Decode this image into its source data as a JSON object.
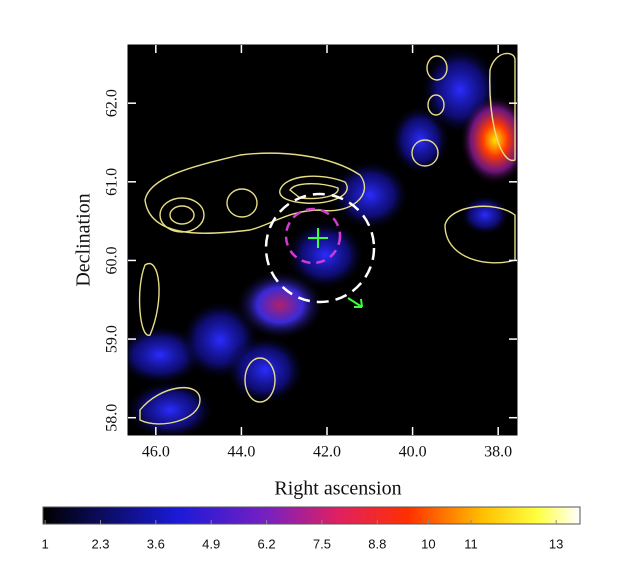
{
  "chart_data": {
    "type": "heatmap",
    "xlabel": "Right ascension",
    "ylabel": "Declination",
    "xlim": [
      46.65,
      37.56
    ],
    "ylim": [
      57.78,
      62.74
    ],
    "xticks": [
      {
        "value": 46,
        "label": "46.0"
      },
      {
        "value": 44,
        "label": "44.0"
      },
      {
        "value": 42,
        "label": "42.0"
      },
      {
        "value": 40,
        "label": "40.0"
      },
      {
        "value": 38,
        "label": "38.0"
      }
    ],
    "yticks": [
      {
        "value": 58,
        "label": "58.0"
      },
      {
        "value": 59,
        "label": "59.0"
      },
      {
        "value": 60,
        "label": "60.0"
      },
      {
        "value": 61,
        "label": "61.0"
      },
      {
        "value": 62,
        "label": "62.0"
      }
    ],
    "colorbar": {
      "lim": [
        0.95,
        13.56
      ],
      "ticks": [
        1,
        2.3,
        3.6,
        4.9,
        6.2,
        7.5,
        8.8,
        10,
        11,
        13
      ]
    }
  }
}
